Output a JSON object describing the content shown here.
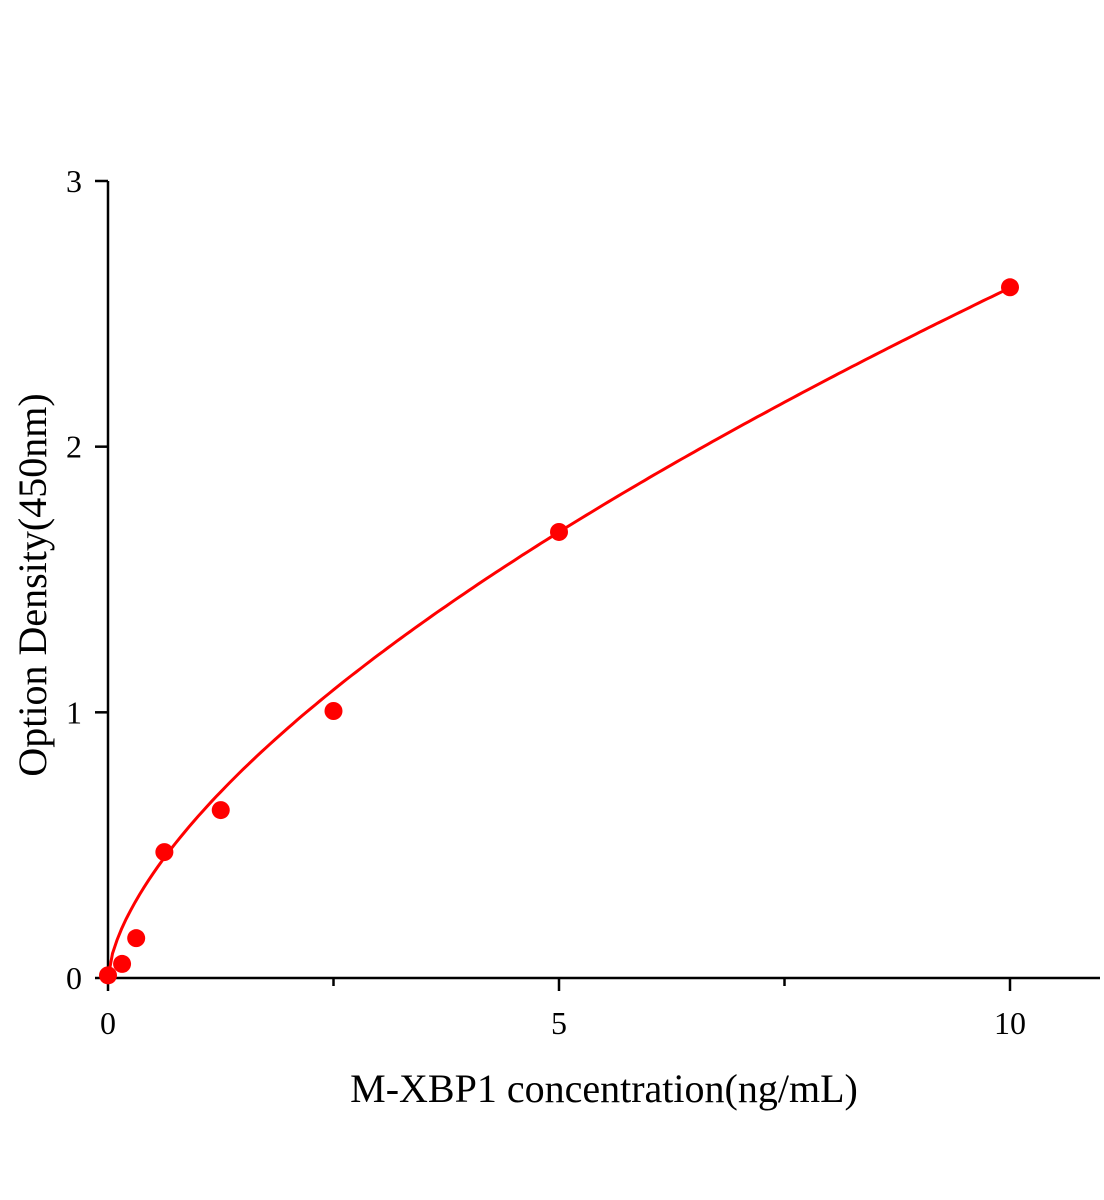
{
  "chart_data": {
    "type": "scatter",
    "title": "",
    "xlabel": "M-XBP1 concentration(ng/mL)",
    "ylabel": "Option Density(450nm)",
    "xlim": [
      0,
      11
    ],
    "ylim": [
      0,
      3
    ],
    "x_ticks": [
      0,
      5,
      10
    ],
    "x_tick_labels": [
      "0",
      "5",
      "10"
    ],
    "x_minor_ticks": [
      2.5,
      7.5
    ],
    "y_ticks": [
      0,
      1,
      2,
      3
    ],
    "y_tick_labels": [
      "0",
      "1",
      "2",
      "3"
    ],
    "grid": false,
    "legend": "none",
    "series": [
      {
        "x": [
          0,
          0.156,
          0.3125,
          0.625,
          1.25,
          2.5,
          5,
          10
        ],
        "y": [
          0.01,
          0.053,
          0.15,
          0.474,
          0.632,
          1.005,
          1.679,
          2.6
        ],
        "color": "#ff0000",
        "fit_line": true
      }
    ]
  }
}
